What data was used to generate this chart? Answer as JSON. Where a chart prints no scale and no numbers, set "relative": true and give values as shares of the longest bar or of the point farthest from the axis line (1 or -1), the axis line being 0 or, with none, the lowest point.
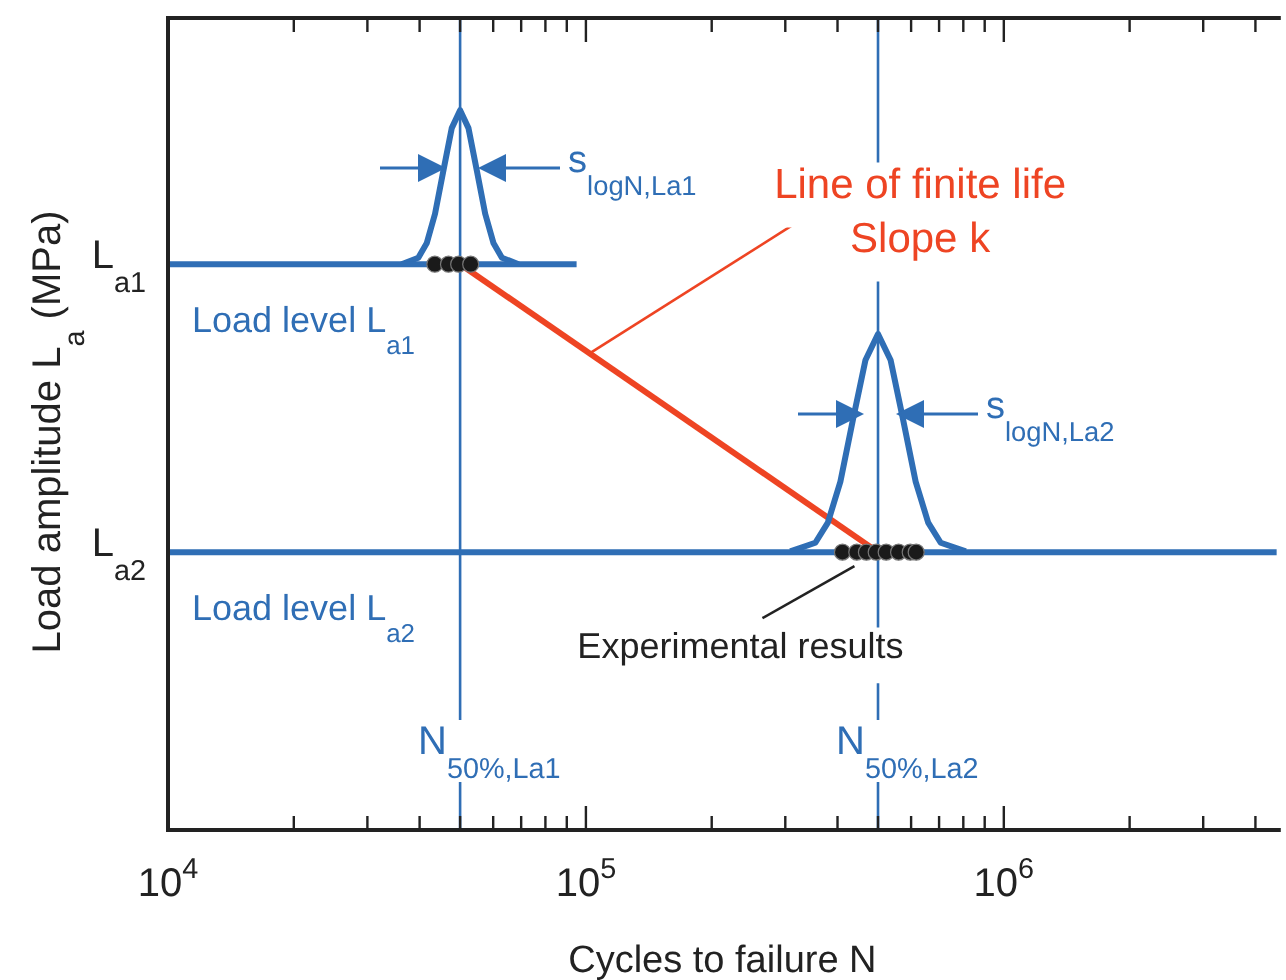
{
  "chart_data": {
    "type": "line",
    "relative": true,
    "log": "x",
    "xlabel": "Cycles to failure N",
    "ylabel": "Load amplitude L$_{a}$ (MPa)",
    "xlim": [
      10000,
      4500000
    ],
    "xticks": [
      {
        "value": 10000,
        "label": "10$^{4}$"
      },
      {
        "value": 20000,
        "label": null
      },
      {
        "value": 30000,
        "label": null
      },
      {
        "value": 40000,
        "label": null
      },
      {
        "value": 50000,
        "label": null
      },
      {
        "value": 60000,
        "label": null
      },
      {
        "value": 70000,
        "label": null
      },
      {
        "value": 80000,
        "label": null
      },
      {
        "value": 90000,
        "label": null
      },
      {
        "value": 100000,
        "label": "10$^{5}$"
      },
      {
        "value": 200000,
        "label": null
      },
      {
        "value": 300000,
        "label": null
      },
      {
        "value": 400000,
        "label": null
      },
      {
        "value": 500000,
        "label": null
      },
      {
        "value": 600000,
        "label": null
      },
      {
        "value": 700000,
        "label": null
      },
      {
        "value": 800000,
        "label": null
      },
      {
        "value": 900000,
        "label": null
      },
      {
        "value": 1000000,
        "label": "10$^{6}$"
      },
      {
        "value": 2000000,
        "label": null
      },
      {
        "value": 3000000,
        "label": null
      },
      {
        "value": 4000000,
        "label": null
      }
    ],
    "series": [
      {
        "name": "Load level L$_{a1}$",
        "color": "#2f6eb5",
        "x": [
          10000,
          95000
        ],
        "values": [
          0.786,
          0.786
        ]
      },
      {
        "name": "Load level L$_{a2}$",
        "color": "#2f6eb5",
        "x": [
          10000,
          4500000
        ],
        "values": [
          0.386,
          0.386
        ]
      },
      {
        "color": "#2f6eb5",
        "x": [
          36220,
          39720,
          41590,
          43550,
          45600,
          47750,
          50000,
          52360,
          54830,
          57410,
          60120,
          62950,
          69020
        ],
        "values": [
          0.786,
          0.795,
          0.815,
          0.856,
          0.916,
          0.975,
          1.0,
          0.975,
          0.916,
          0.856,
          0.815,
          0.795,
          0.786
        ]
      },
      {
        "color": "#2f6eb5",
        "x": [
          308300,
          354000,
          379300,
          406400,
          435500,
          466700,
          500000,
          535800,
          574100,
          615200,
          659200,
          706300,
          811000
        ],
        "values": [
          0.387,
          0.399,
          0.427,
          0.484,
          0.57,
          0.653,
          0.689,
          0.653,
          0.57,
          0.484,
          0.427,
          0.399,
          0.387
        ]
      },
      {
        "name": "Line of finite life\nSlope k",
        "color": "#ee4423",
        "x": [
          50000,
          500000
        ],
        "values": [
          0.786,
          0.386
        ]
      },
      {
        "type": "scatter",
        "name": "Experimental results",
        "color": "#1a1a1a",
        "x": [
          43500,
          46900,
          49600,
          53000,
          411000,
          444800,
          469000,
          495000,
          523000,
          560000,
          597000,
          617000
        ],
        "values": [
          0.786,
          0.786,
          0.786,
          0.786,
          0.386,
          0.386,
          0.386,
          0.386,
          0.386,
          0.386,
          0.386,
          0.386
        ]
      }
    ],
    "ref_lines": [
      {
        "axis": "x",
        "value": 50000,
        "label": "N$_{50%,La1}$",
        "color": "#2f6eb5"
      },
      {
        "axis": "x",
        "value": 500000,
        "label": "N$_{50%,La2}$",
        "color": "#2f6eb5"
      }
    ],
    "annotations": [
      {
        "text": "L$_{a1}$",
        "x": 10000,
        "y": 0.786
      },
      {
        "text": "L$_{a2}$",
        "x": 10000,
        "y": 0.386
      },
      {
        "text": "s$_{logN,La1}$",
        "x": 50000,
        "y": 0.919
      },
      {
        "text": "s$_{logN,La2}$",
        "x": 500000,
        "y": 0.578
      }
    ]
  }
}
